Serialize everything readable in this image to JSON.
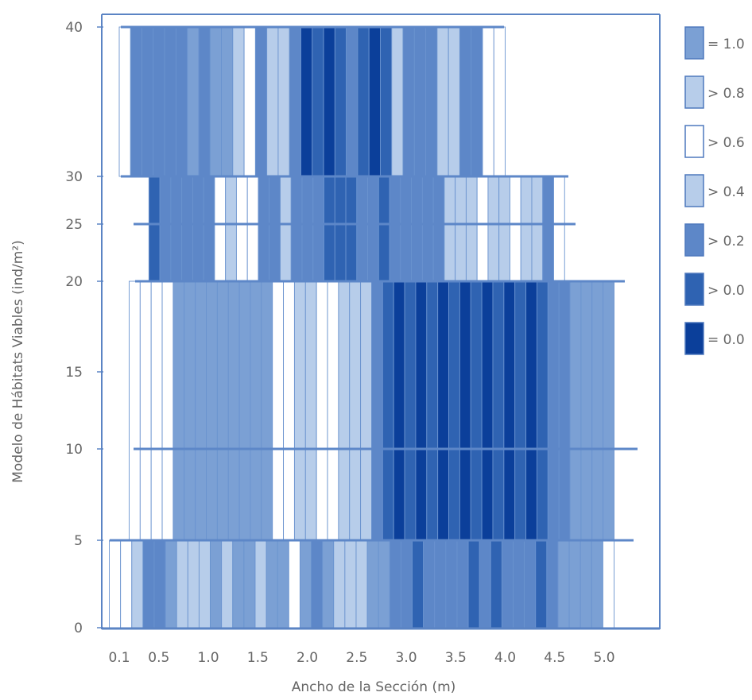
{
  "chart_data": {
    "type": "heatmap",
    "title": "",
    "xlabel": "Ancho de la Sección (m)",
    "ylabel": "Modelo de Hábitats Viables (ind/m²)",
    "x_ticks": [
      "0.1",
      "0.5",
      "1.0",
      "1.5",
      "2.0",
      "2.5",
      "3.0",
      "3.5",
      "4.0",
      "4.5",
      "5.0"
    ],
    "y_ticks": [
      "0",
      "5",
      "10",
      "15",
      "20",
      "25",
      "30",
      "40"
    ],
    "legend": {
      "placement": "right",
      "entries": [
        {
          "label": "= 1.0",
          "color": "#7ba0d4"
        },
        {
          "label": "> 0.8",
          "color": "#b7cdea"
        },
        {
          "label": "> 0.6",
          "color": "#ffffff"
        },
        {
          "label": "> 0.4",
          "color": "#b7cdea"
        },
        {
          "label": "> 0.2",
          "color": "#5d87c8"
        },
        {
          "label": "> 0.0",
          "color": "#2f63b2"
        },
        {
          "label": "= 0.0",
          "color": "#0b3f9a"
        }
      ]
    },
    "grid": false,
    "bands": [
      {
        "y_range": [
          "0",
          "5"
        ],
        "x_range": [
          "0.0",
          "5.1"
        ],
        "cells": [
          "> 0.6",
          "> 0.6",
          "> 0.8",
          "> 0.2",
          "> 0.2",
          "= 1.0",
          "> 0.8",
          "> 0.8",
          "> 0.4",
          "= 1.0",
          "> 0.8",
          "= 1.0",
          "= 1.0",
          "> 0.4",
          "= 1.0",
          "= 1.0",
          "> 0.6",
          "= 1.0",
          "> 0.2",
          "= 1.0",
          "> 0.8",
          "> 0.8",
          "> 0.4",
          "= 1.0",
          "= 1.0",
          "> 0.2",
          "> 0.2",
          "> 0.0",
          "> 0.2",
          "> 0.2",
          "> 0.2",
          "> 0.2",
          "> 0.0",
          "> 0.2",
          "> 0.0",
          "> 0.2",
          "> 0.2",
          "> 0.2",
          "> 0.0",
          "> 0.2",
          "= 1.0",
          "= 1.0",
          "= 1.0",
          "= 1.0",
          "> 0.6"
        ]
      },
      {
        "y_range": [
          "5",
          "20"
        ],
        "x_range": [
          "0.2",
          "5.1"
        ],
        "cells": [
          "> 0.6",
          "> 0.6",
          "> 0.6",
          "> 0.6",
          "= 1.0",
          "= 1.0",
          "= 1.0",
          "= 1.0",
          "= 1.0",
          "= 1.0",
          "= 1.0",
          "= 1.0",
          "= 1.0",
          "> 0.6",
          "> 0.6",
          "> 0.8",
          "> 0.8",
          "> 0.6",
          "> 0.6",
          "> 0.8",
          "> 0.8",
          "> 0.8",
          "> 0.2",
          "> 0.0",
          "= 0.0",
          "> 0.0",
          "= 0.0",
          "> 0.0",
          "= 0.0",
          "> 0.0",
          "= 0.0",
          "> 0.0",
          "= 0.0",
          "> 0.0",
          "= 0.0",
          "> 0.0",
          "= 0.0",
          "> 0.0",
          "> 0.2",
          "> 0.2",
          "= 1.0",
          "= 1.0",
          "= 1.0",
          "= 1.0"
        ]
      },
      {
        "y_range": [
          "20",
          "30"
        ],
        "x_range": [
          "0.4",
          "4.6"
        ],
        "cells": [
          "> 0.0",
          "> 0.2",
          "> 0.2",
          "> 0.2",
          "> 0.2",
          "> 0.2",
          "> 0.6",
          "> 0.8",
          "> 0.6",
          "> 0.6",
          "> 0.2",
          "> 0.2",
          "> 0.4",
          "> 0.2",
          "> 0.2",
          "> 0.2",
          "> 0.0",
          "> 0.0",
          "> 0.0",
          "> 0.2",
          "> 0.2",
          "> 0.0",
          "> 0.2",
          "> 0.2",
          "> 0.2",
          "> 0.2",
          "> 0.2",
          "> 0.4",
          "> 0.8",
          "> 0.8",
          "> 0.6",
          "> 0.8",
          "> 0.8",
          "> 0.6",
          "> 0.8",
          "> 0.8",
          "> 0.2",
          "> 0.6"
        ]
      },
      {
        "y_range": [
          "30",
          "40"
        ],
        "x_range": [
          "0.1",
          "4.0"
        ],
        "cells": [
          "> 0.6",
          "> 0.2",
          "> 0.2",
          "> 0.2",
          "> 0.2",
          "> 0.2",
          "= 1.0",
          "> 0.2",
          "= 1.0",
          "= 1.0",
          "> 0.8",
          "> 0.6",
          "> 0.2",
          "> 0.4",
          "> 0.8",
          "> 0.2",
          "= 0.0",
          "> 0.0",
          "= 0.0",
          "> 0.0",
          "> 0.2",
          "> 0.0",
          "= 0.0",
          "> 0.0",
          "> 0.4",
          "> 0.2",
          "> 0.2",
          "> 0.2",
          "> 0.8",
          "> 0.8",
          "> 0.2",
          "> 0.2",
          "> 0.6",
          "> 0.6"
        ]
      }
    ]
  }
}
